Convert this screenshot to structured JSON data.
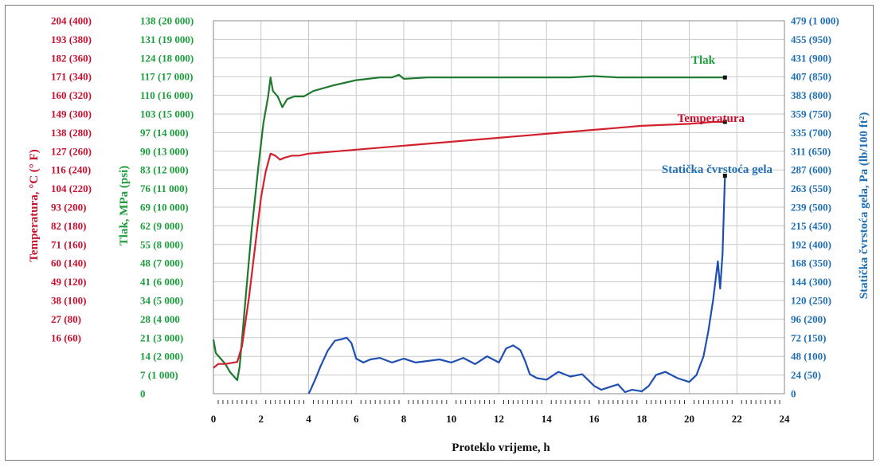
{
  "chart_data": {
    "type": "line",
    "xlabel": "Proteklo vrijeme, h",
    "xlim": [
      0,
      24
    ],
    "xticks": [
      "0",
      "2",
      "4",
      "6",
      "8",
      "10",
      "12",
      "14",
      "16",
      "18",
      "20",
      "22",
      "24"
    ],
    "temp_axis": {
      "label": "Temperatura, °C (° F)",
      "color": "#c8102e",
      "range": [
        16,
        204
      ],
      "ticks": [
        "204 (400)",
        "193 (380)",
        "182 (360)",
        "171 (340)",
        "160 (320)",
        "149 (300)",
        "138 (280)",
        "127 (260)",
        "116 (240)",
        "104 (220)",
        "93 (200)",
        "82 (180)",
        "71 (160)",
        "60 (140)",
        "49 (120)",
        "38 (100)",
        "27 (80)",
        "16 (60)"
      ]
    },
    "pressure_axis": {
      "label": "Tlak, MPa (psi)",
      "color": "#1e9e3e",
      "range": [
        0,
        138
      ],
      "ticks": [
        "138 (20 000)",
        "131 (19 000)",
        "124 (18 000)",
        "117 (17 000)",
        "110 (16 000)",
        "103 (15 000)",
        "97 (14 000)",
        "90 (13 000)",
        "83 (12 000)",
        "76 (11 000)",
        "69 (10 000)",
        "62 (9 000)",
        "55 (8 000)",
        "48 (7 000)",
        "41 (6 000)",
        "34 (5 000)",
        "28 (4 000",
        "21 (3 000)",
        "14 (2 000)",
        "7 (1 000)",
        "0"
      ]
    },
    "gel_axis": {
      "label": "Statička čvrstoća gela, Pa (lb/100 ft²)",
      "color": "#1f6fb5",
      "range": [
        0,
        479
      ],
      "ticks": [
        "479 (1 000)",
        "455 (950)",
        "431 (900)",
        "407 (850)",
        "383 (800)",
        "359 (750)",
        "335 (700)",
        "311 (650)",
        "287 (600)",
        "263 (550)",
        "239 (500)",
        "215 (450)",
        "192 (400)",
        "168 (350)",
        "144 (300)",
        "120 (250)",
        "96 (200)",
        "72 (150)",
        "48 (100)",
        "24 (50)",
        "0"
      ]
    },
    "series": [
      {
        "name": "Tlak",
        "axis": "pressure",
        "color": "#1e7a2e",
        "x": [
          0.0,
          0.1,
          0.3,
          0.5,
          0.7,
          0.9,
          1.0,
          1.1,
          1.3,
          1.6,
          1.9,
          2.1,
          2.3,
          2.4,
          2.5,
          2.7,
          2.9,
          3.1,
          3.4,
          3.8,
          4.2,
          4.6,
          5.0,
          5.5,
          6.0,
          6.5,
          7.0,
          7.5,
          7.8,
          8.0,
          9.0,
          10.0,
          11.0,
          12.0,
          13.0,
          14.0,
          15.0,
          16.0,
          17.0,
          18.0,
          19.0,
          20.0,
          21.0,
          21.5
        ],
        "y": [
          20,
          15,
          13,
          11,
          8,
          6,
          5,
          10,
          30,
          60,
          85,
          100,
          110,
          117,
          112,
          110,
          106,
          109,
          110,
          110,
          112,
          113,
          114,
          115,
          116,
          116.5,
          117,
          117,
          118,
          116.5,
          117,
          117,
          117,
          117,
          117,
          117,
          117,
          117.5,
          117,
          117,
          117,
          117,
          117,
          117
        ]
      },
      {
        "name": "Temperatura",
        "axis": "temperature",
        "color": "#d4202e",
        "x": [
          0.0,
          0.2,
          0.5,
          1.0,
          1.2,
          1.5,
          1.8,
          2.0,
          2.2,
          2.4,
          2.6,
          2.8,
          3.0,
          3.3,
          3.6,
          4.0,
          5.0,
          6.0,
          8.0,
          10.0,
          12.0,
          14.0,
          16.0,
          18.0,
          20.0,
          21.0,
          21.5
        ],
        "y": [
          29,
          31,
          31,
          32,
          40,
          65,
          95,
          115,
          128,
          137,
          136,
          134,
          135,
          136,
          136,
          137,
          138,
          139,
          141,
          143,
          145,
          147,
          149,
          151,
          152,
          153,
          153
        ]
      },
      {
        "name": "Statička čvrstoća gela",
        "axis": "gel",
        "color": "#1f4fb0",
        "x": [
          4.0,
          4.1,
          4.3,
          4.5,
          4.8,
          5.1,
          5.4,
          5.6,
          5.8,
          6.0,
          6.3,
          6.6,
          7.0,
          7.5,
          8.0,
          8.5,
          9.0,
          9.5,
          10.0,
          10.5,
          11.0,
          11.5,
          12.0,
          12.3,
          12.6,
          12.9,
          13.1,
          13.3,
          13.6,
          14.0,
          14.5,
          15.0,
          15.5,
          16.0,
          16.3,
          16.6,
          17.0,
          17.3,
          17.6,
          18.0,
          18.3,
          18.6,
          19.0,
          19.5,
          20.0,
          20.3,
          20.6,
          20.8,
          21.0,
          21.2,
          21.3,
          21.4,
          21.5
        ],
        "y": [
          0,
          6,
          20,
          35,
          55,
          68,
          70,
          72,
          65,
          45,
          40,
          44,
          46,
          40,
          45,
          40,
          42,
          44,
          40,
          46,
          38,
          48,
          40,
          58,
          62,
          56,
          42,
          25,
          20,
          18,
          28,
          22,
          25,
          10,
          5,
          8,
          12,
          2,
          5,
          3,
          10,
          24,
          28,
          20,
          15,
          24,
          48,
          80,
          120,
          170,
          135,
          180,
          280
        ]
      }
    ],
    "annotations": [
      {
        "text": "Tlak",
        "color": "#1e9e3e"
      },
      {
        "text": "Temperatura",
        "color": "#c8102e"
      },
      {
        "text": "Statička čvrstoća gela",
        "color": "#1f6fb5"
      }
    ]
  }
}
